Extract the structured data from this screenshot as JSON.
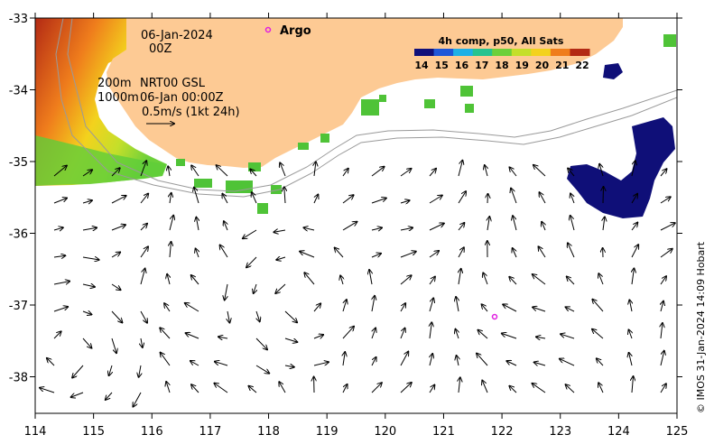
{
  "map": {
    "date_label": "06-Jan-2024",
    "time_label": "00Z",
    "isobath_shallow": "200m",
    "isobath_deep": "1000m",
    "dataset_label": "NRT00 GSL",
    "field_time_label": "06-Jan 00:00Z",
    "scale_label": "0.5m/s (1kt 24h)",
    "argo_label": "Argo",
    "colorbar_title": "4h comp, p50, All Sats",
    "colorbar_ticks": [
      "14",
      "15",
      "16",
      "17",
      "18",
      "19",
      "20",
      "21",
      "22"
    ],
    "colorbar_colors": [
      "#10107a",
      "#1f57d8",
      "#1fb0e6",
      "#27c38f",
      "#6cd03a",
      "#c4df2a",
      "#f3d21d",
      "#ef7d1c",
      "#b32a14"
    ],
    "copyright": "© IMOS 31-Jan-2024 14:09 Hobart",
    "x_ticks": [
      "114",
      "115",
      "116",
      "117",
      "118",
      "119",
      "120",
      "121",
      "122",
      "123",
      "124",
      "125"
    ],
    "y_ticks": [
      "-33",
      "-34",
      "-35",
      "-36",
      "-37",
      "-38"
    ],
    "land_color": "#fdca94",
    "argo_color": "#e020e0"
  }
}
